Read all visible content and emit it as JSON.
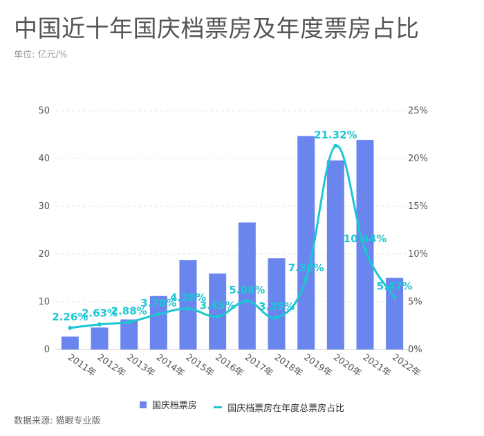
{
  "title": "中国近十年国庆档票房及年度票房占比",
  "unit": "单位: 亿元/%",
  "source": "数据来源: 猫眼专业版",
  "colors": {
    "bar": "#6a86ee",
    "line": "#1cc6d2",
    "text": "#555555",
    "grid": "#e6e6e6"
  },
  "chart_data": {
    "type": "bar",
    "categories": [
      "2011年",
      "2012年",
      "2013年",
      "2014年",
      "2015年",
      "2016年",
      "2017年",
      "2018年",
      "2019年",
      "2020年",
      "2021年",
      "2022年"
    ],
    "series": [
      {
        "name": "国庆档票房",
        "type": "bar",
        "axis": "left",
        "values": [
          2.7,
          4.6,
          6.3,
          11.2,
          18.7,
          15.9,
          26.6,
          19.1,
          44.7,
          39.6,
          43.9,
          15.0
        ]
      },
      {
        "name": "国庆档票房在年度总票房占比",
        "type": "line",
        "axis": "right",
        "values": [
          2.26,
          2.63,
          2.88,
          3.7,
          4.28,
          3.45,
          5.08,
          3.35,
          7.38,
          21.32,
          10.44,
          5.47
        ],
        "labels": [
          "2.26%",
          "2.63%",
          "2.88%",
          "3.70%",
          "4.28%",
          "3.45%",
          "5.08%",
          "3.35%",
          "7.38%",
          "21.32%",
          "10.44%",
          "5.47%"
        ]
      }
    ],
    "y_left": {
      "min": 0,
      "max": 50,
      "ticks": [
        "0",
        "10",
        "20",
        "30",
        "40",
        "50"
      ]
    },
    "y_right": {
      "min": 0,
      "max": 25,
      "ticks": [
        "0%",
        "5%",
        "10%",
        "15%",
        "20%",
        "25%"
      ]
    },
    "grid": true,
    "legend_position": "bottom"
  }
}
